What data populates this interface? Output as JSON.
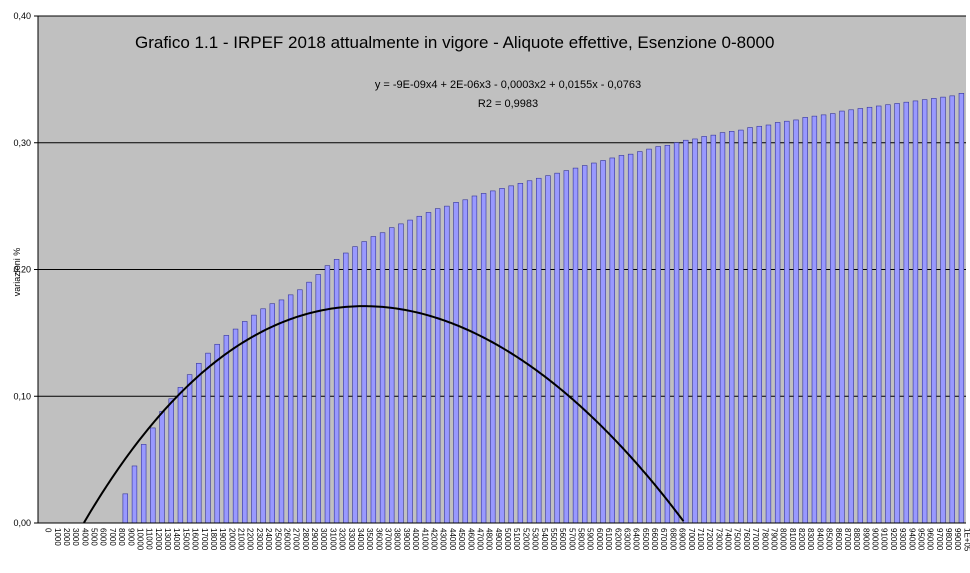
{
  "chart_data": {
    "type": "bar",
    "title": "Grafico 1.1 - IRPEF 2018 attualmente in vigore - Aliquote effettive, Esenzione 0-8000",
    "ylabel": "variazioni %",
    "xlabel": "",
    "ylim": [
      0,
      0.4
    ],
    "y_ticks": [
      "0,00",
      "0,10",
      "0,20",
      "0,30",
      "0,40"
    ],
    "grid": "horizontal",
    "plot_background": "#c0c0c0",
    "bar_fill": "#9999ff",
    "bar_stroke": "#333399",
    "trend_color": "#000000",
    "trendline": {
      "equation": "y = -9E-09x4 + 2E-06x3 - 0,0003x2 + 0,0155x - 0,0763",
      "r_squared": "R2 = 0,9983",
      "coefficients": [
        -9e-09,
        2e-06,
        -0.0003,
        0.0155,
        -0.0763
      ]
    },
    "x_tick_labels": [
      "0",
      "1000",
      "2000",
      "3000",
      "4000",
      "5000",
      "6000",
      "7000",
      "8000",
      "9000",
      "10000",
      "11000",
      "12000",
      "13000",
      "14000",
      "15000",
      "16000",
      "17000",
      "18000",
      "19000",
      "20000",
      "21000",
      "22000",
      "23000",
      "24000",
      "25000",
      "26000",
      "27000",
      "28000",
      "29000",
      "30000",
      "31000",
      "32000",
      "33000",
      "34000",
      "35000",
      "36000",
      "37000",
      "38000",
      "39000",
      "40000",
      "41000",
      "42000",
      "43000",
      "44000",
      "45000",
      "46000",
      "47000",
      "48000",
      "49000",
      "50000",
      "51000",
      "52000",
      "53000",
      "54000",
      "55000",
      "56000",
      "57000",
      "58000",
      "59000",
      "60000",
      "61000",
      "62000",
      "63000",
      "64000",
      "65000",
      "66000",
      "67000",
      "68000",
      "69000",
      "70000",
      "71000",
      "72000",
      "73000",
      "74000",
      "75000",
      "76000",
      "77000",
      "78000",
      "79000",
      "80000",
      "81000",
      "82000",
      "83000",
      "84000",
      "85000",
      "86000",
      "87000",
      "88000",
      "89000",
      "90000",
      "91000",
      "92000",
      "93000",
      "94000",
      "95000",
      "96000",
      "97000",
      "98000",
      "99000",
      "1E+05"
    ],
    "categories": [
      0,
      1000,
      2000,
      3000,
      4000,
      5000,
      6000,
      7000,
      8000,
      9000,
      10000,
      11000,
      12000,
      13000,
      14000,
      15000,
      16000,
      17000,
      18000,
      19000,
      20000,
      21000,
      22000,
      23000,
      24000,
      25000,
      26000,
      27000,
      28000,
      29000,
      30000,
      31000,
      32000,
      33000,
      34000,
      35000,
      36000,
      37000,
      38000,
      39000,
      40000,
      41000,
      42000,
      43000,
      44000,
      45000,
      46000,
      47000,
      48000,
      49000,
      50000,
      51000,
      52000,
      53000,
      54000,
      55000,
      56000,
      57000,
      58000,
      59000,
      60000,
      61000,
      62000,
      63000,
      64000,
      65000,
      66000,
      67000,
      68000,
      69000,
      70000,
      71000,
      72000,
      73000,
      74000,
      75000,
      76000,
      77000,
      78000,
      79000,
      80000,
      81000,
      82000,
      83000,
      84000,
      85000,
      86000,
      87000,
      88000,
      89000,
      90000,
      91000,
      92000,
      93000,
      94000,
      95000,
      96000,
      97000,
      98000,
      99000,
      100000
    ],
    "values": [
      0,
      0,
      0,
      0,
      0,
      0,
      0,
      0,
      0,
      0.023,
      0.045,
      0.062,
      0.075,
      0.088,
      0.098,
      0.107,
      0.117,
      0.126,
      0.134,
      0.141,
      0.148,
      0.153,
      0.159,
      0.164,
      0.169,
      0.173,
      0.176,
      0.18,
      0.184,
      0.19,
      0.196,
      0.203,
      0.208,
      0.213,
      0.218,
      0.222,
      0.226,
      0.229,
      0.233,
      0.236,
      0.239,
      0.242,
      0.245,
      0.248,
      0.25,
      0.253,
      0.255,
      0.258,
      0.26,
      0.262,
      0.264,
      0.266,
      0.268,
      0.27,
      0.272,
      0.274,
      0.276,
      0.278,
      0.28,
      0.282,
      0.284,
      0.286,
      0.288,
      0.29,
      0.291,
      0.293,
      0.295,
      0.297,
      0.298,
      0.3,
      0.302,
      0.303,
      0.305,
      0.306,
      0.308,
      0.309,
      0.31,
      0.312,
      0.313,
      0.314,
      0.316,
      0.317,
      0.318,
      0.32,
      0.321,
      0.322,
      0.323,
      0.325,
      0.326,
      0.327,
      0.328,
      0.329,
      0.33,
      0.331,
      0.332,
      0.333,
      0.334,
      0.335,
      0.336,
      0.337,
      0.339
    ]
  }
}
